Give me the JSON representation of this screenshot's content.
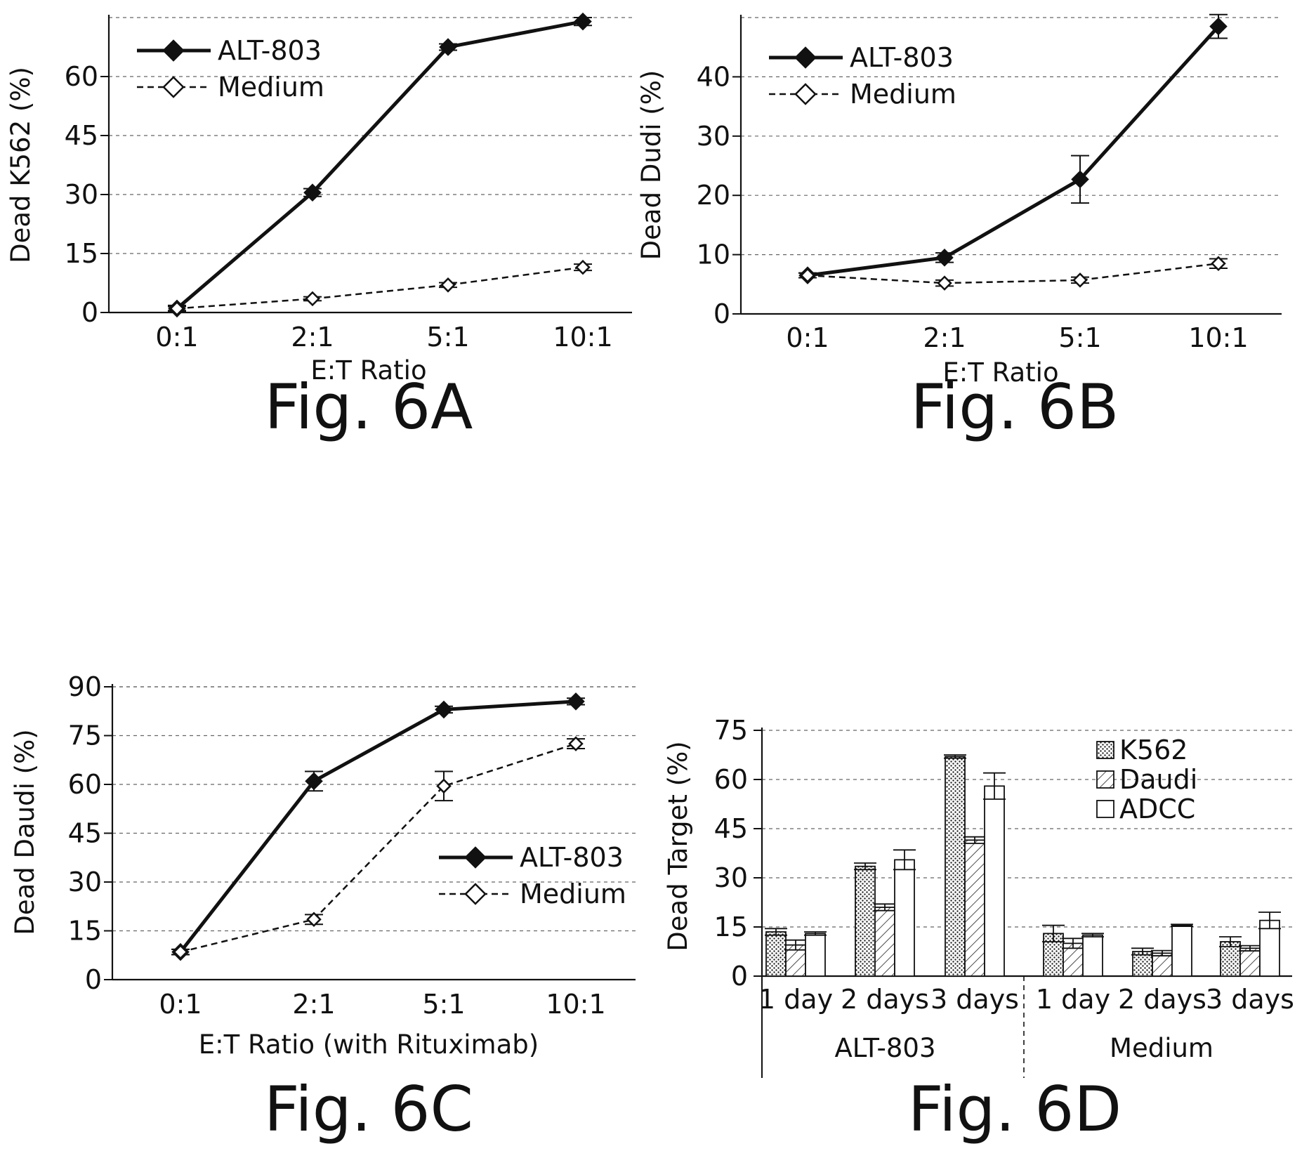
{
  "chart_data": [
    {
      "id": "6a",
      "type": "line",
      "caption": "Fig. 6A",
      "title": "",
      "xlabel": "E:T Ratio",
      "ylabel": "Dead K562 (%)",
      "categories": [
        "0:1",
        "2:1",
        "5:1",
        "10:1"
      ],
      "y_ticks": [
        0,
        15,
        30,
        45,
        60
      ],
      "ylim": [
        0,
        75
      ],
      "grid": "horizontal-dashed",
      "legend_position": "top-left",
      "series": [
        {
          "name": "ALT-803",
          "style": "solid",
          "marker": "filled-diamond",
          "values": [
            1.0,
            30.5,
            67.5,
            74.0
          ],
          "errors": [
            0.8,
            1.0,
            0.8,
            1.0
          ]
        },
        {
          "name": "Medium",
          "style": "dashed",
          "marker": "open-diamond",
          "values": [
            1.0,
            3.5,
            7.0,
            11.5
          ],
          "errors": [
            0.5,
            0.5,
            0.6,
            0.8
          ]
        }
      ]
    },
    {
      "id": "6b",
      "type": "line",
      "caption": "Fig. 6B",
      "title": "",
      "xlabel": "E:T Ratio",
      "ylabel": "Dead Dudi (%)",
      "categories": [
        "0:1",
        "2:1",
        "5:1",
        "10:1"
      ],
      "y_ticks": [
        0,
        10,
        20,
        30,
        40
      ],
      "ylim": [
        0,
        50
      ],
      "grid": "horizontal-dashed",
      "legend_position": "top-left",
      "series": [
        {
          "name": "ALT-803",
          "style": "solid",
          "marker": "filled-diamond",
          "values": [
            6.5,
            9.5,
            22.7,
            48.5
          ],
          "errors": [
            0.4,
            0.8,
            4.0,
            2.0
          ]
        },
        {
          "name": "Medium",
          "style": "dashed",
          "marker": "open-diamond",
          "values": [
            6.5,
            5.2,
            5.7,
            8.5
          ],
          "errors": [
            0.4,
            0.5,
            0.5,
            0.8
          ]
        }
      ]
    },
    {
      "id": "6c",
      "type": "line",
      "caption": "Fig. 6C",
      "title": "",
      "xlabel": "E:T Ratio (with Rituximab)",
      "ylabel": "Dead Daudi (%)",
      "categories": [
        "0:1",
        "2:1",
        "5:1",
        "10:1"
      ],
      "y_ticks": [
        0,
        15,
        30,
        45,
        60,
        75,
        90
      ],
      "ylim": [
        0,
        90
      ],
      "grid": "horizontal-dashed",
      "legend_position": "center-right",
      "series": [
        {
          "name": "ALT-803",
          "style": "solid",
          "marker": "filled-diamond",
          "values": [
            8.5,
            61.0,
            83.0,
            85.5
          ],
          "errors": [
            0.8,
            3.0,
            1.0,
            1.0
          ]
        },
        {
          "name": "Medium",
          "style": "dashed",
          "marker": "open-diamond",
          "values": [
            8.5,
            18.5,
            59.5,
            72.5
          ],
          "errors": [
            0.8,
            1.5,
            4.5,
            1.5
          ]
        }
      ]
    },
    {
      "id": "6d",
      "type": "bar",
      "caption": "Fig. 6D",
      "title": "",
      "xlabel": "",
      "ylabel": "Dead Target (%)",
      "categories": [
        "1 day",
        "2 days",
        "3 days",
        "1 day",
        "2 days",
        "3 days"
      ],
      "groups": [
        {
          "label": "ALT-803",
          "span": [
            0,
            2
          ]
        },
        {
          "label": "Medium",
          "span": [
            3,
            5
          ]
        }
      ],
      "y_ticks": [
        0,
        15,
        30,
        45,
        60,
        75
      ],
      "ylim": [
        0,
        75
      ],
      "grid": "horizontal-dashed",
      "legend_position": "top-right",
      "series": [
        {
          "name": "K562",
          "pattern": "dotted",
          "values": [
            13.5,
            33.5,
            67.0,
            13.0,
            7.5,
            10.5
          ],
          "errors": [
            1.0,
            1.0,
            0.5,
            2.5,
            1.0,
            1.5
          ]
        },
        {
          "name": "Daudi",
          "pattern": "hatched",
          "values": [
            9.5,
            21.0,
            41.5,
            10.0,
            7.0,
            8.5
          ],
          "errors": [
            1.5,
            1.0,
            1.0,
            1.5,
            0.8,
            0.8
          ]
        },
        {
          "name": "ADCC",
          "pattern": "open",
          "values": [
            13.0,
            35.5,
            58.0,
            12.5,
            15.5,
            17.0
          ],
          "errors": [
            0.5,
            3.0,
            4.0,
            0.5,
            0.3,
            2.5
          ]
        }
      ]
    }
  ]
}
